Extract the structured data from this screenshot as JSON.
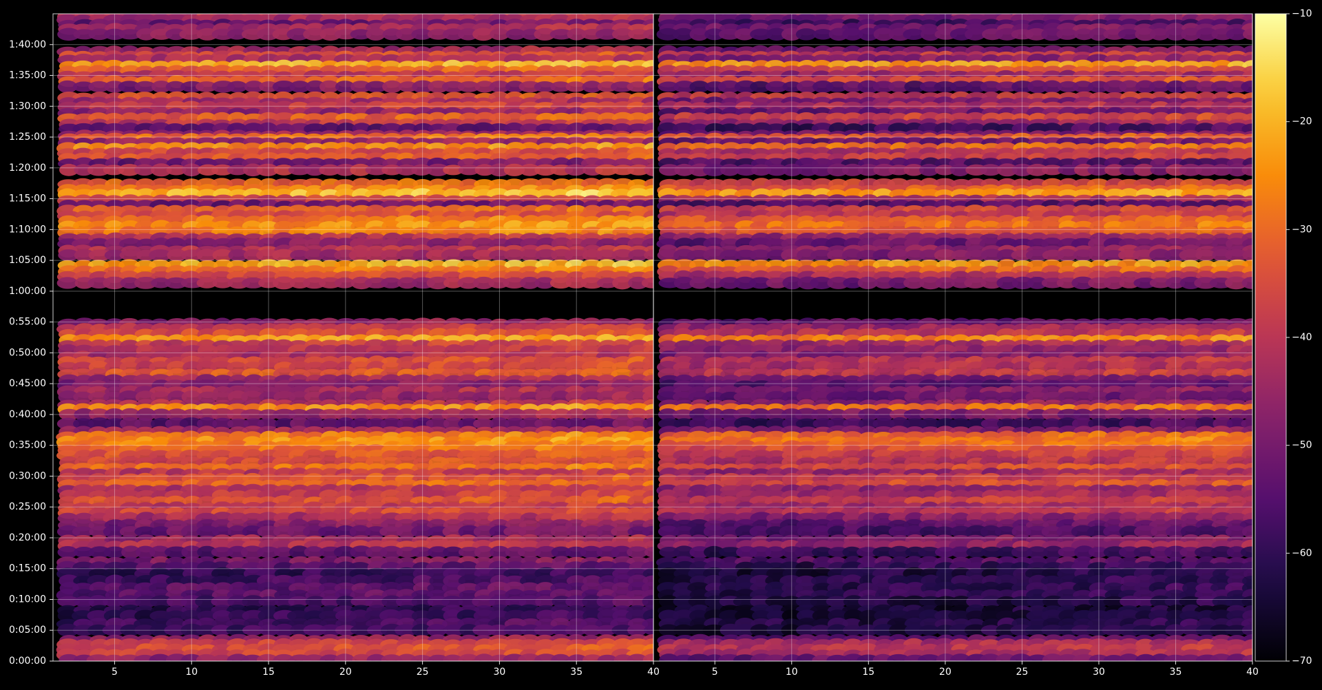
{
  "chart_data": {
    "type": "heatmap",
    "background": "#000000",
    "grid": true,
    "colormap": "inferno",
    "colorbar": {
      "min": -70,
      "max": -10,
      "ticks": [
        -70,
        -60,
        -50,
        -40,
        -30,
        -20,
        -10
      ],
      "tick_labels": [
        "−70",
        "−60",
        "−50",
        "−40",
        "−30",
        "−20",
        "−10"
      ]
    },
    "x": {
      "range": [
        1,
        40
      ],
      "ticks": [
        5,
        10,
        15,
        20,
        25,
        30,
        35,
        40
      ],
      "tick_labels": [
        "5",
        "10",
        "15",
        "20",
        "25",
        "30",
        "35",
        "40"
      ]
    },
    "y": {
      "range_seconds": [
        0,
        6300
      ],
      "ticks_seconds": [
        0,
        300,
        600,
        900,
        1200,
        1500,
        1800,
        2100,
        2400,
        2700,
        3000,
        3300,
        3600,
        3900,
        4200,
        4500,
        4800,
        5100,
        5400,
        5700,
        6000
      ],
      "tick_labels": [
        "0:00:00",
        "0:05:00",
        "0:10:00",
        "0:15:00",
        "0:20:00",
        "0:25:00",
        "0:30:00",
        "0:35:00",
        "0:40:00",
        "0:45:00",
        "0:50:00",
        "0:55:00",
        "1:00:00",
        "1:05:00",
        "1:10:00",
        "1:15:00",
        "1:20:00",
        "1:25:00",
        "1:30:00",
        "1:35:00",
        "1:40:00"
      ]
    },
    "panels": [
      {
        "columns": [
          2,
          40
        ],
        "bands": [
          {
            "t": 6270,
            "level": -42
          },
          {
            "t": 6240,
            "level": -45
          },
          {
            "t": 6190,
            "level": -54
          },
          {
            "t": 6150,
            "level": -45
          },
          {
            "t": 6100,
            "level": -48
          },
          {
            "t": 5930,
            "level": -45
          },
          {
            "t": 5880,
            "level": -36
          },
          {
            "t": 5850,
            "level": -44
          },
          {
            "t": 5790,
            "level": -22
          },
          {
            "t": 5740,
            "level": -34
          },
          {
            "t": 5690,
            "level": -42
          },
          {
            "t": 5640,
            "level": -32
          },
          {
            "t": 5590,
            "level": -50
          },
          {
            "t": 5480,
            "level": -35
          },
          {
            "t": 5430,
            "level": -46
          },
          {
            "t": 5390,
            "level": -39
          },
          {
            "t": 5330,
            "level": -48
          },
          {
            "t": 5280,
            "level": -33
          },
          {
            "t": 5220,
            "level": -41
          },
          {
            "t": 5180,
            "level": -56
          },
          {
            "t": 5110,
            "level": -45
          },
          {
            "t": 5080,
            "level": -30
          },
          {
            "t": 5040,
            "level": -48
          },
          {
            "t": 4990,
            "level": -26
          },
          {
            "t": 4940,
            "level": -38
          },
          {
            "t": 4890,
            "level": -34
          },
          {
            "t": 4840,
            "level": -53
          },
          {
            "t": 4780,
            "level": -43
          },
          {
            "t": 4640,
            "level": -32
          },
          {
            "t": 4580,
            "level": -28
          },
          {
            "t": 4540,
            "level": -20
          },
          {
            "t": 4480,
            "level": -40
          },
          {
            "t": 4430,
            "level": -54
          },
          {
            "t": 4380,
            "level": -32
          },
          {
            "t": 4330,
            "level": -37
          },
          {
            "t": 4280,
            "level": -29
          },
          {
            "t": 4230,
            "level": -26
          },
          {
            "t": 4170,
            "level": -29
          },
          {
            "t": 4110,
            "level": -43
          },
          {
            "t": 4060,
            "level": -49
          },
          {
            "t": 3990,
            "level": -42
          },
          {
            "t": 3950,
            "level": -45
          },
          {
            "t": 3850,
            "level": -22
          },
          {
            "t": 3790,
            "level": -30
          },
          {
            "t": 3740,
            "level": -38
          },
          {
            "t": 3680,
            "level": -46
          },
          {
            "t": 3280,
            "level": -48
          },
          {
            "t": 3230,
            "level": -40
          },
          {
            "t": 3180,
            "level": -36
          },
          {
            "t": 3120,
            "level": -24
          },
          {
            "t": 3070,
            "level": -40
          },
          {
            "t": 3020,
            "level": -42
          },
          {
            "t": 2960,
            "level": -44
          },
          {
            "t": 2910,
            "level": -36
          },
          {
            "t": 2860,
            "level": -38
          },
          {
            "t": 2790,
            "level": -34
          },
          {
            "t": 2730,
            "level": -46
          },
          {
            "t": 2680,
            "level": -50
          },
          {
            "t": 2620,
            "level": -44
          },
          {
            "t": 2570,
            "level": -48
          },
          {
            "t": 2490,
            "level": -42
          },
          {
            "t": 2450,
            "level": -26
          },
          {
            "t": 2400,
            "level": -46
          },
          {
            "t": 2310,
            "level": -54
          },
          {
            "t": 2230,
            "level": -44
          },
          {
            "t": 2180,
            "level": -28
          },
          {
            "t": 2130,
            "level": -26
          },
          {
            "t": 2090,
            "level": -28
          },
          {
            "t": 2050,
            "level": -31
          },
          {
            "t": 2000,
            "level": -35
          },
          {
            "t": 1930,
            "level": -36
          },
          {
            "t": 1870,
            "level": -30
          },
          {
            "t": 1820,
            "level": -42
          },
          {
            "t": 1770,
            "level": -35
          },
          {
            "t": 1710,
            "level": -32
          },
          {
            "t": 1660,
            "level": -43
          },
          {
            "t": 1610,
            "level": -40
          },
          {
            "t": 1550,
            "level": -35
          },
          {
            "t": 1490,
            "level": -41
          },
          {
            "t": 1440,
            "level": -37
          },
          {
            "t": 1390,
            "level": -44
          },
          {
            "t": 1320,
            "level": -50
          },
          {
            "t": 1260,
            "level": -53
          },
          {
            "t": 1170,
            "level": -45
          },
          {
            "t": 1120,
            "level": -42
          },
          {
            "t": 1060,
            "level": -55
          },
          {
            "t": 960,
            "level": -50
          },
          {
            "t": 910,
            "level": -56
          },
          {
            "t": 850,
            "level": -61
          },
          {
            "t": 780,
            "level": -59
          },
          {
            "t": 710,
            "level": -55
          },
          {
            "t": 640,
            "level": -55
          },
          {
            "t": 580,
            "level": -58
          },
          {
            "t": 490,
            "level": -62
          },
          {
            "t": 440,
            "level": -61
          },
          {
            "t": 360,
            "level": -58
          },
          {
            "t": 300,
            "level": -59
          },
          {
            "t": 200,
            "level": -47
          },
          {
            "t": 160,
            "level": -38
          },
          {
            "t": 110,
            "level": -36
          },
          {
            "t": 60,
            "level": -38
          },
          {
            "t": 10,
            "level": -48
          }
        ]
      },
      {
        "columns": [
          2,
          40
        ],
        "bands": [
          {
            "t": 6270,
            "level": -50
          },
          {
            "t": 6240,
            "level": -52
          },
          {
            "t": 6190,
            "level": -60
          },
          {
            "t": 6150,
            "level": -52
          },
          {
            "t": 6100,
            "level": -54
          },
          {
            "t": 5930,
            "level": -52
          },
          {
            "t": 5880,
            "level": -40
          },
          {
            "t": 5850,
            "level": -50
          },
          {
            "t": 5790,
            "level": -24
          },
          {
            "t": 5740,
            "level": -38
          },
          {
            "t": 5690,
            "level": -48
          },
          {
            "t": 5640,
            "level": -36
          },
          {
            "t": 5590,
            "level": -56
          },
          {
            "t": 5480,
            "level": -40
          },
          {
            "t": 5430,
            "level": -52
          },
          {
            "t": 5390,
            "level": -44
          },
          {
            "t": 5330,
            "level": -54
          },
          {
            "t": 5280,
            "level": -38
          },
          {
            "t": 5220,
            "level": -48
          },
          {
            "t": 5180,
            "level": -60
          },
          {
            "t": 5110,
            "level": -52
          },
          {
            "t": 5080,
            "level": -34
          },
          {
            "t": 5040,
            "level": -54
          },
          {
            "t": 4990,
            "level": -30
          },
          {
            "t": 4940,
            "level": -44
          },
          {
            "t": 4890,
            "level": -40
          },
          {
            "t": 4840,
            "level": -58
          },
          {
            "t": 4780,
            "level": -50
          },
          {
            "t": 4640,
            "level": -38
          },
          {
            "t": 4580,
            "level": -34
          },
          {
            "t": 4540,
            "level": -24
          },
          {
            "t": 4480,
            "level": -46
          },
          {
            "t": 4430,
            "level": -58
          },
          {
            "t": 4380,
            "level": -38
          },
          {
            "t": 4330,
            "level": -42
          },
          {
            "t": 4280,
            "level": -34
          },
          {
            "t": 4230,
            "level": -30
          },
          {
            "t": 4170,
            "level": -34
          },
          {
            "t": 4110,
            "level": -48
          },
          {
            "t": 4060,
            "level": -54
          },
          {
            "t": 3990,
            "level": -48
          },
          {
            "t": 3950,
            "level": -50
          },
          {
            "t": 3850,
            "level": -26
          },
          {
            "t": 3790,
            "level": -34
          },
          {
            "t": 3740,
            "level": -44
          },
          {
            "t": 3680,
            "level": -52
          },
          {
            "t": 3280,
            "level": -54
          },
          {
            "t": 3230,
            "level": -46
          },
          {
            "t": 3180,
            "level": -42
          },
          {
            "t": 3120,
            "level": -28
          },
          {
            "t": 3070,
            "level": -46
          },
          {
            "t": 3020,
            "level": -48
          },
          {
            "t": 2960,
            "level": -50
          },
          {
            "t": 2910,
            "level": -42
          },
          {
            "t": 2860,
            "level": -44
          },
          {
            "t": 2790,
            "level": -40
          },
          {
            "t": 2730,
            "level": -52
          },
          {
            "t": 2680,
            "level": -56
          },
          {
            "t": 2620,
            "level": -50
          },
          {
            "t": 2570,
            "level": -54
          },
          {
            "t": 2490,
            "level": -48
          },
          {
            "t": 2450,
            "level": -30
          },
          {
            "t": 2400,
            "level": -52
          },
          {
            "t": 2310,
            "level": -60
          },
          {
            "t": 2230,
            "level": -50
          },
          {
            "t": 2180,
            "level": -32
          },
          {
            "t": 2130,
            "level": -30
          },
          {
            "t": 2090,
            "level": -32
          },
          {
            "t": 2050,
            "level": -36
          },
          {
            "t": 2000,
            "level": -40
          },
          {
            "t": 1930,
            "level": -42
          },
          {
            "t": 1870,
            "level": -36
          },
          {
            "t": 1820,
            "level": -48
          },
          {
            "t": 1770,
            "level": -40
          },
          {
            "t": 1710,
            "level": -36
          },
          {
            "t": 1660,
            "level": -48
          },
          {
            "t": 1610,
            "level": -46
          },
          {
            "t": 1550,
            "level": -40
          },
          {
            "t": 1490,
            "level": -46
          },
          {
            "t": 1440,
            "level": -42
          },
          {
            "t": 1390,
            "level": -50
          },
          {
            "t": 1320,
            "level": -56
          },
          {
            "t": 1260,
            "level": -58
          },
          {
            "t": 1170,
            "level": -50
          },
          {
            "t": 1120,
            "level": -48
          },
          {
            "t": 1060,
            "level": -60
          },
          {
            "t": 960,
            "level": -56
          },
          {
            "t": 910,
            "level": -62
          },
          {
            "t": 850,
            "level": -64
          },
          {
            "t": 780,
            "level": -63
          },
          {
            "t": 710,
            "level": -62
          },
          {
            "t": 640,
            "level": -62
          },
          {
            "t": 580,
            "level": -64
          },
          {
            "t": 490,
            "level": -66
          },
          {
            "t": 440,
            "level": -65
          },
          {
            "t": 360,
            "level": -63
          },
          {
            "t": 300,
            "level": -64
          },
          {
            "t": 200,
            "level": -54
          },
          {
            "t": 160,
            "level": -44
          },
          {
            "t": 110,
            "level": -42
          },
          {
            "t": 60,
            "level": -44
          },
          {
            "t": 10,
            "level": -54
          }
        ]
      }
    ]
  }
}
